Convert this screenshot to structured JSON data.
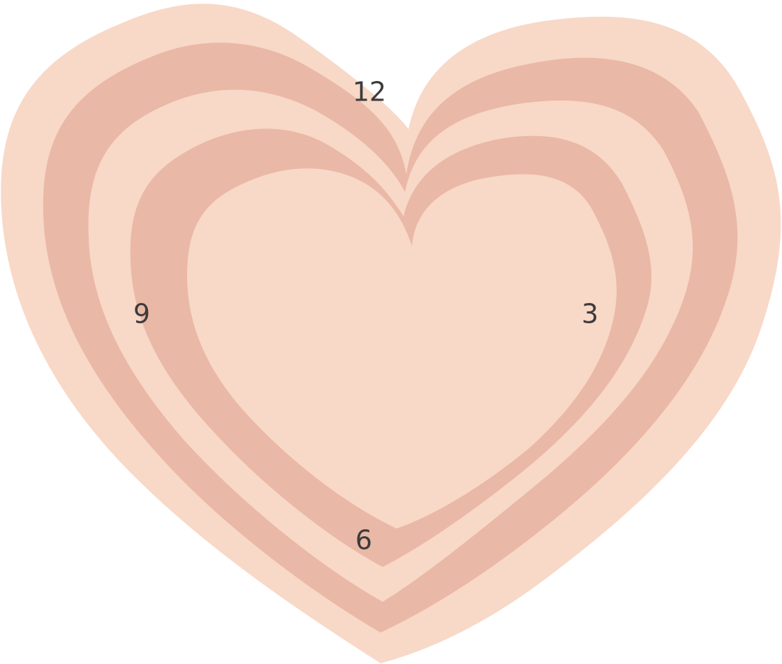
{
  "clock": {
    "numerals": {
      "twelve": "12",
      "three": "3",
      "six": "6",
      "nine": "9"
    },
    "colors": {
      "light_layer": "#f8d8c7",
      "dark_layer": "#eab8a6",
      "numeral": "#3d3b3c",
      "background": "#ffffff"
    }
  }
}
